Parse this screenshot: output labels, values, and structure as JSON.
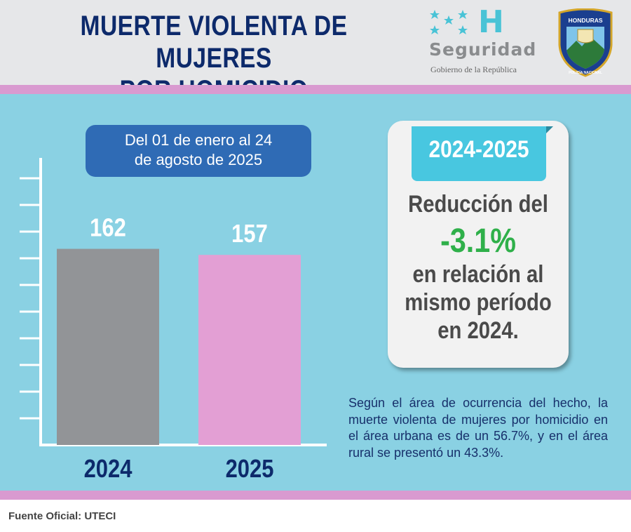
{
  "header": {
    "title_line1": "MUERTE VIOLENTA DE MUJERES",
    "title_line2": "POR HOMICIDIO",
    "logo_letter": "H",
    "logo_word": "Seguridad",
    "logo_sub": "Gobierno de la República",
    "badge_text": "HONDURAS",
    "badge_sub": "POLICÍA NACIONAL"
  },
  "date_range": {
    "line1": "Del 01 de enero al 24",
    "line2": "de agosto de 2025"
  },
  "chart_data": {
    "type": "bar",
    "categories": [
      "2024",
      "2025"
    ],
    "values": [
      162,
      157
    ],
    "colors": [
      "#929497",
      "#e39fd4"
    ],
    "ylim": [
      0,
      200
    ],
    "title": "",
    "xlabel": "",
    "ylabel": ""
  },
  "card": {
    "tab_label": "2024-2025",
    "line1": "Reducción del",
    "percent": "-3.1%",
    "line2": "en relación al",
    "line3": "mismo período",
    "line4": "en 2024."
  },
  "note": "Según el área de ocurrencia del hecho, la muerte violenta de mujeres por homicidio en el área urbana es de un 56.7%, y en el área rural se presentó un 43.3%.",
  "footer": {
    "source": "Fuente Oficial: UTECI"
  },
  "colors": {
    "navy": "#0d2a6b",
    "background": "#8ad1e3",
    "accent_pink": "#d99ad0",
    "accent_green": "#2fb04a",
    "pill_blue": "#2f6bb5"
  }
}
